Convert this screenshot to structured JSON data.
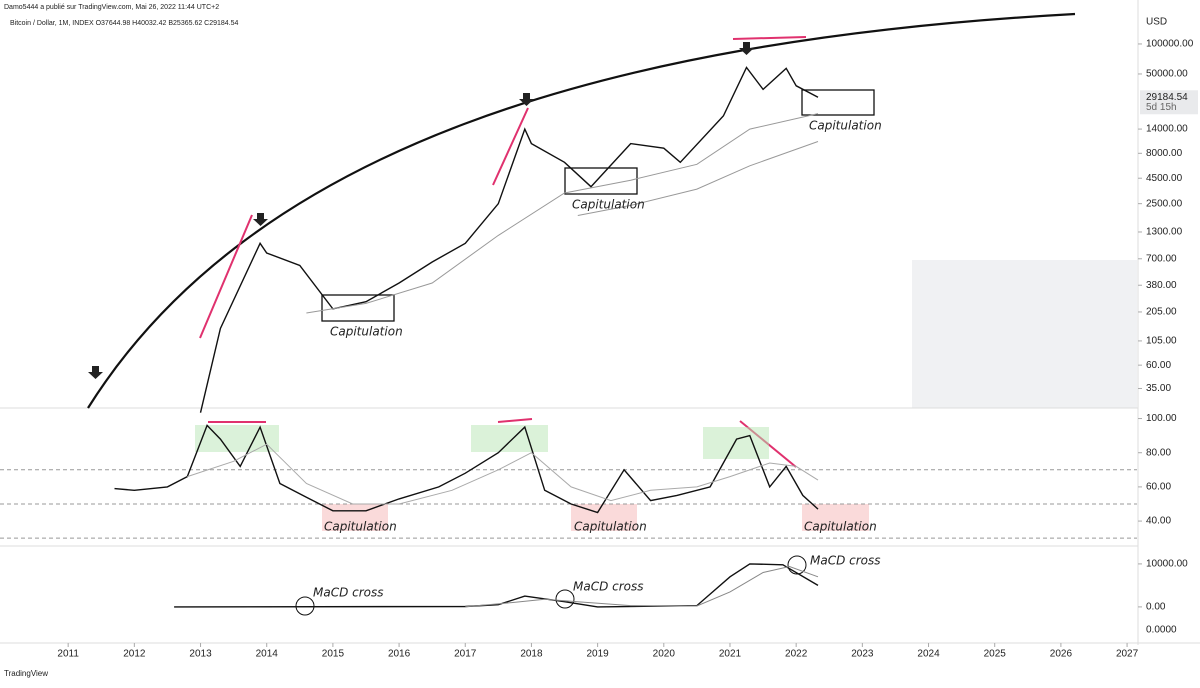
{
  "header": {
    "publisher": "Damo5444 a publié sur TradingView.com, Mai 26, 2022 11:44 UTC+2",
    "symbol": "Bitcoin / Dollar, 1M, INDEX  O37644.98  H40032.42  B25365.62  C29184.54",
    "currency": "USD",
    "price_label": "29184.54",
    "countdown": "5d 15h",
    "footer": "TradingView"
  },
  "chart_data": [
    {
      "type": "line",
      "log_scale": true,
      "xlim": [
        2009.97,
        2027.15
      ],
      "ylim": [
        22.3,
        276000
      ],
      "yticks": [
        {
          "value": 100000,
          "label": "100000.00"
        },
        {
          "value": 50000,
          "label": "50000.00"
        },
        {
          "value": 14000,
          "label": "14000.00"
        },
        {
          "value": 8000,
          "label": "8000.00"
        },
        {
          "value": 4500,
          "label": "4500.00"
        },
        {
          "value": 2500,
          "label": "2500.00"
        },
        {
          "value": 1300,
          "label": "1300.00"
        },
        {
          "value": 700,
          "label": "700.00"
        },
        {
          "value": 380,
          "label": "380.00"
        },
        {
          "value": 205,
          "label": "205.00"
        },
        {
          "value": 105,
          "label": "105.00"
        },
        {
          "value": 60,
          "label": "60.00"
        },
        {
          "value": 35,
          "label": "35.00"
        }
      ],
      "annotations": [
        "Capitulation",
        "Capitulation",
        "Capitulation"
      ],
      "series": [
        {
          "color": "#111111",
          "x": [
            2013.0,
            2013.3,
            2013.9,
            2014.0,
            2014.5,
            2015.0,
            2015.5,
            2016.0,
            2016.5,
            2017.0,
            2017.5,
            2017.9,
            2018.0,
            2018.5,
            2018.9,
            2019.5,
            2020.0,
            2020.25,
            2020.9,
            2021.25,
            2021.5,
            2021.85,
            2022.0,
            2022.33
          ],
          "values": [
            20,
            140,
            1000,
            800,
            600,
            220,
            260,
            400,
            650,
            1000,
            2500,
            14000,
            10000,
            6500,
            3700,
            10000,
            9000,
            6500,
            19000,
            58000,
            35000,
            57000,
            38000,
            29184.54
          ]
        },
        {
          "color": "#999999",
          "x": [
            2014.6,
            2015.5,
            2016.5,
            2017.5,
            2018.5,
            2019.5,
            2020.5,
            2021.3,
            2022.33
          ],
          "values": [
            200,
            250,
            400,
            1200,
            3200,
            4300,
            6200,
            14000,
            20000
          ]
        },
        {
          "color": "#999999",
          "x": [
            2018.7,
            2019.5,
            2020.5,
            2021.3,
            2022.33
          ],
          "values": [
            1900,
            2400,
            3500,
            6000,
            10500
          ]
        }
      ]
    },
    {
      "type": "line",
      "xlim": [
        2009.97,
        2027.15
      ],
      "ylim": [
        26,
        105
      ],
      "yticks": [
        {
          "value": 100,
          "label": "100.00"
        },
        {
          "value": 80,
          "label": "80.00"
        },
        {
          "value": 60,
          "label": "60.00"
        },
        {
          "value": 40,
          "label": "40.00"
        }
      ],
      "levels": [
        70,
        50,
        30
      ],
      "annotations": [
        "Capitulation",
        "Capitulation",
        "Capitulation"
      ],
      "series": [
        {
          "color": "#111111",
          "x": [
            2011.7,
            2012.0,
            2012.5,
            2012.8,
            2013.1,
            2013.3,
            2013.6,
            2013.9,
            2014.2,
            2014.6,
            2015.0,
            2015.5,
            2016.0,
            2016.6,
            2017.0,
            2017.5,
            2017.9,
            2018.2,
            2018.6,
            2019.0,
            2019.4,
            2019.8,
            2020.2,
            2020.7,
            2021.1,
            2021.3,
            2021.6,
            2021.85,
            2022.1,
            2022.33
          ],
          "values": [
            59,
            58,
            60,
            66,
            96,
            88,
            72,
            95,
            62,
            54,
            46,
            46,
            53,
            60,
            68,
            80,
            95,
            58,
            50,
            45,
            70,
            52,
            55,
            60,
            88,
            90,
            60,
            72,
            55,
            47
          ]
        },
        {
          "color": "#aaaaaa",
          "x": [
            2012.8,
            2013.5,
            2014.0,
            2014.6,
            2015.3,
            2016.0,
            2016.8,
            2017.5,
            2018.0,
            2018.6,
            2019.2,
            2019.8,
            2020.5,
            2021.0,
            2021.6,
            2022.0,
            2022.33
          ],
          "values": [
            66,
            75,
            85,
            62,
            50,
            50,
            58,
            70,
            80,
            60,
            52,
            58,
            60,
            66,
            74,
            72,
            64
          ]
        }
      ]
    },
    {
      "type": "line",
      "xlim": [
        2009.97,
        2027.15
      ],
      "ylim": [
        -7700,
        13700
      ],
      "yticks": [
        {
          "value": 10000,
          "label": "10000.00"
        },
        {
          "value": 0,
          "label": "0.00"
        }
      ],
      "xticks": [
        2011,
        2012,
        2013,
        2014,
        2015,
        2016,
        2017,
        2018,
        2019,
        2020,
        2021,
        2022,
        2023,
        2024,
        2025,
        2026,
        2027
      ],
      "annotations": [
        "MaCD cross",
        "MaCD cross",
        "MaCD cross"
      ],
      "histogram_label": "0.0000",
      "series": [
        {
          "color": "#111111",
          "x": [
            2012.6,
            2017.0,
            2017.5,
            2017.9,
            2018.5,
            2019.0,
            2020.5,
            2021.0,
            2021.3,
            2021.8,
            2022.33
          ],
          "values": [
            0,
            100,
            500,
            2500,
            1200,
            0,
            300,
            7000,
            10000,
            9800,
            5000
          ]
        },
        {
          "color": "#888888",
          "x": [
            2017.0,
            2017.7,
            2018.2,
            2018.8,
            2019.5,
            2020.5,
            2021.0,
            2021.5,
            2021.9,
            2022.33
          ],
          "values": [
            50,
            1000,
            1800,
            1100,
            300,
            200,
            3500,
            8000,
            9400,
            7000
          ]
        }
      ]
    }
  ]
}
